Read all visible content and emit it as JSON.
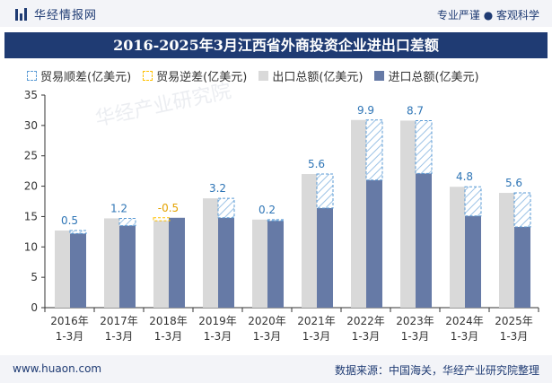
{
  "header": {
    "brand": "华经情报网",
    "tagline": "专业严谨 ● 客观科学"
  },
  "title": "2016-2025年3月江西省外商投资企业进出口差额",
  "legend": {
    "surplus": "贸易顺差(亿美元)",
    "deficit": "贸易逆差(亿美元)",
    "export": "出口总额(亿美元)",
    "import": "进口总额(亿美元)"
  },
  "colors": {
    "export": "#d9d9d9",
    "import": "#667aa6",
    "surplus_line": "#5b9bd5",
    "deficit_line": "#ffc000",
    "label": "#2e75b6",
    "deficit_label": "#e4a300",
    "title_bg": "#1f3b73"
  },
  "chart_data": {
    "type": "bar",
    "categories": [
      "2016年\n1-3月",
      "2017年\n1-3月",
      "2018年\n1-3月",
      "2019年\n1-3月",
      "2020年\n1-3月",
      "2021年\n1-3月",
      "2022年\n1-3月",
      "2023年\n1-3月",
      "2024年\n1-3月",
      "2025年\n1-3月"
    ],
    "series": [
      {
        "name": "出口总额(亿美元)",
        "values": [
          12.7,
          14.7,
          14.3,
          18.0,
          14.5,
          22.0,
          30.9,
          30.8,
          19.9,
          18.9
        ]
      },
      {
        "name": "进口总额(亿美元)",
        "values": [
          12.2,
          13.5,
          14.8,
          14.8,
          14.3,
          16.4,
          21.0,
          22.1,
          15.1,
          13.3
        ]
      },
      {
        "name": "贸易差额(亿美元)",
        "values": [
          0.5,
          1.2,
          -0.5,
          3.2,
          0.2,
          5.6,
          9.9,
          8.7,
          4.8,
          5.6
        ]
      }
    ],
    "balance_labels": [
      "0.5",
      "1.2",
      "-0.5",
      "3.2",
      "0.2",
      "5.6",
      "9.9",
      "8.7",
      "4.8",
      "5.6"
    ],
    "yticks": [
      0,
      5,
      10,
      15,
      20,
      25,
      30,
      35
    ],
    "ylim": [
      0,
      35
    ],
    "xlabel": "",
    "ylabel": ""
  },
  "watermark": "华经产业研究院",
  "footer": {
    "site": "www.huaon.com",
    "source": "数据来源：中国海关，华经产业研究院整理"
  }
}
